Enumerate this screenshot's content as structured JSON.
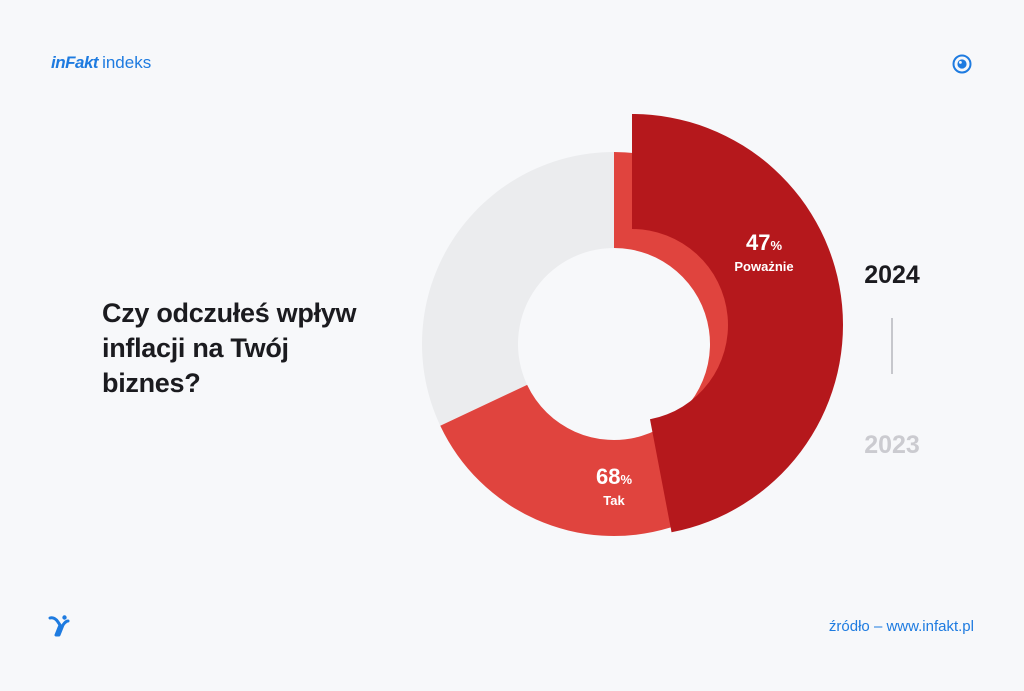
{
  "header": {
    "brand": "inFakt",
    "product": "indeks"
  },
  "icons": {
    "top_right": "eye-icon",
    "bottom_left": "bird-icon"
  },
  "question": "Czy odczułeś wpływ inflacji na Twój biznes?",
  "years": {
    "active": "2024",
    "inactive": "2023"
  },
  "footer": {
    "source": "źródło – www.infakt.pl"
  },
  "colors": {
    "tak": "#e0443e",
    "powaznie": "#b5181c",
    "rest": "#ebecee",
    "brand": "#1e7be0",
    "background": "#f7f8fa"
  },
  "chart_data": {
    "type": "pie",
    "variant": "donut",
    "series": [
      {
        "name": "Tak",
        "value": 68
      },
      {
        "name": "Poważnie",
        "value": 47
      }
    ],
    "labels": [
      {
        "value": "68",
        "unit": "%",
        "name": "Tak"
      },
      {
        "value": "47",
        "unit": "%",
        "name": "Poważnie"
      }
    ]
  }
}
